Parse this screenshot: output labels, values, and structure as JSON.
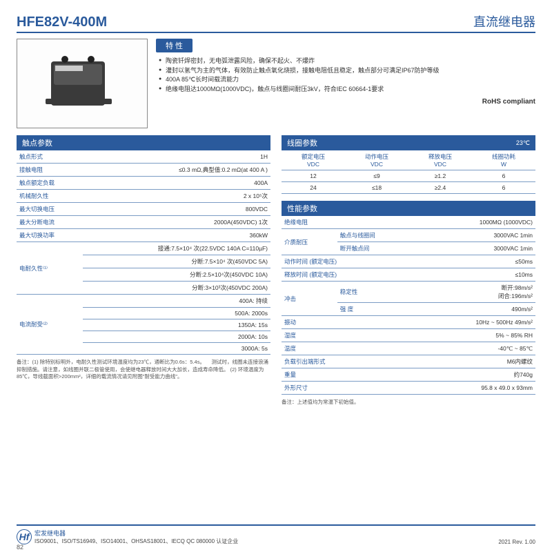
{
  "header": {
    "model": "HFE82V-400M",
    "category": "直流继电器"
  },
  "features": {
    "title": "特 性",
    "items": [
      "陶瓷钎焊密封，无电弧泄露风险，确保不起火、不爆炸",
      "灌封以氢气为主的气体，有效防止触点氧化烧损，接触电阻低且稳定，触点部分可满足IP67防护等级",
      "400A 85℃长时间载流能力",
      "绝缘电阻达1000MΩ(1000VDC)，触点与线圈间耐压3kV，符合IEC 60664-1要求"
    ],
    "rohs": "RoHS compliant"
  },
  "contact": {
    "title": "触点参数",
    "rows": [
      [
        "触点形式",
        "1H"
      ],
      [
        "接触电阻",
        "≤0.3 mΩ,典型值:0.2 mΩ(at 400 A )"
      ],
      [
        "触点额定负载",
        "400A"
      ],
      [
        "机械耐久性",
        "2 x 10⁵次"
      ],
      [
        "最大切换电压",
        "800VDC"
      ],
      [
        "最大分断电流",
        "2000A(450VDC) 1次"
      ],
      [
        "最大切换功率",
        "360kW"
      ]
    ],
    "durability_label": "电耐久性⁽¹⁾",
    "durability": [
      "接通:7.5×10⁴ 次(22.5VDC 140A C=110µF)",
      "分断:7.5×10⁴ 次(450VDC 5A)",
      "分断:2.5×10⁴次(450VDC 10A)",
      "分断:3×10³次(450VDC 200A)"
    ],
    "current_label": "电流耐受⁽²⁾",
    "current": [
      "400A: 持续",
      "500A: 2000s",
      "1350A: 15s",
      "2000A: 10s",
      "3000A: 5s"
    ]
  },
  "notes_left": "备注：(1) 除特别标明外，电耐久性测试环境温度均为23℃，通断比为0.6s：5.4s。\n　测试时，线圈未连接浪涌抑制措施。请注意，如线圈并联二极管使用，会使继电器释放时间大大加长，造成寿命降低。\n(2) 环境温度为85℃，导线截面积>200mm²，详细的载流情况请见附图\"耐受能力曲线\"。",
  "coil": {
    "title": "线圈参数",
    "cond": "23℃",
    "headers": [
      "额定电压\nVDC",
      "动作电压\nVDC",
      "释放电压\nVDC",
      "线圈功耗\nW"
    ],
    "rows": [
      [
        "12",
        "≤9",
        "≥1.2",
        "6"
      ],
      [
        "24",
        "≤18",
        "≥2.4",
        "6"
      ]
    ]
  },
  "perf": {
    "title": "性能参数",
    "rows1": [
      [
        "绝缘电阻",
        "",
        "1000MΩ (1000VDC)"
      ]
    ],
    "dielectric_label": "介质耐压",
    "dielectric": [
      [
        "触点与线圈间",
        "3000VAC  1min"
      ],
      [
        "断开触点间",
        "3000VAC  1min"
      ]
    ],
    "rows2": [
      [
        "动作时间 (额定电压)",
        "",
        "≤50ms"
      ],
      [
        "释放时间 (额定电压)",
        "",
        "≤10ms"
      ]
    ],
    "shock_label": "冲击",
    "shock": [
      [
        "稳定性",
        "断开:98m/s²\n闭合:196m/s²"
      ],
      [
        "强 度",
        "490m/s²"
      ]
    ],
    "rows3": [
      [
        "振动",
        "",
        "10Hz ~ 500Hz  49m/s²"
      ],
      [
        "湿度",
        "",
        "5% ~ 85% RH"
      ],
      [
        "温度",
        "",
        "-40℃ ~ 85℃"
      ],
      [
        "负载引出端形式",
        "",
        "M6内螺纹"
      ],
      [
        "重量",
        "",
        "约740g"
      ],
      [
        "外形尺寸",
        "",
        "95.8 x 49.0 x 93mm"
      ]
    ],
    "note": "备注：上述值均为常温下初始值。"
  },
  "footer": {
    "brand": "宏发继电器",
    "certs": "ISO9001、ISO/TS16949、ISO14001、OHSAS18001、IECQ QC 080000 认证企业",
    "rev": "2021 Rev. 1.00",
    "page": "82"
  }
}
